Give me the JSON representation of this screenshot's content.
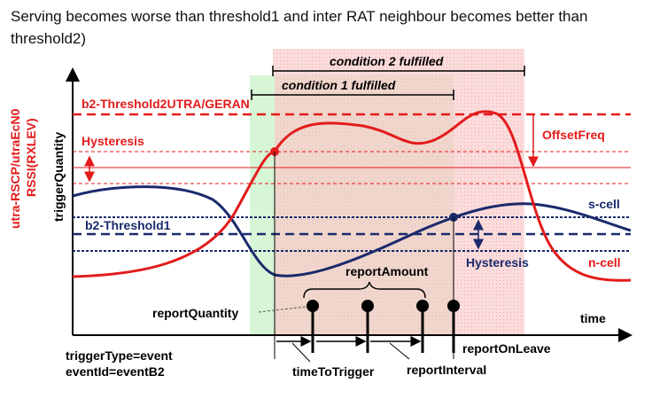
{
  "title": "Serving becomes worse than threshold1 and inter RAT neighbour becomes better than threshold2)",
  "labels": {
    "condition2": "condition 2 fulfilled",
    "condition1": "condition 1 fulfilled",
    "b2_threshold2": "b2-Threshold2UTRA/GERAN",
    "hysteresis_upper": "Hysteresis",
    "offset_freq": "OffsetFreq",
    "b2_threshold1": "b2-Threshold1",
    "hysteresis_lower": "Hysteresis",
    "s_cell": "s-cell",
    "n_cell": "n-cell",
    "report_amount": "reportAmount",
    "report_quantity": "reportQuantity",
    "time": "time",
    "report_on_leave": "reportOnLeave",
    "time_to_trigger": "timeToTrigger",
    "report_interval": "reportInterval",
    "trigger_type": "triggerType=event",
    "event_id": "eventId=eventB2",
    "y_axis": "triggerQuantity",
    "y_axis_red_1": "utra-RSCP/utraEcN0",
    "y_axis_red_2": "RSSI(RXLEV)"
  },
  "colors": {
    "serving_cell": "#1a2a6c",
    "neighbour_cell": "#e31b1b",
    "condition1_zone": "#d4f5d4",
    "condition2_zone": "#fbd6d6",
    "text": "#000000"
  }
}
